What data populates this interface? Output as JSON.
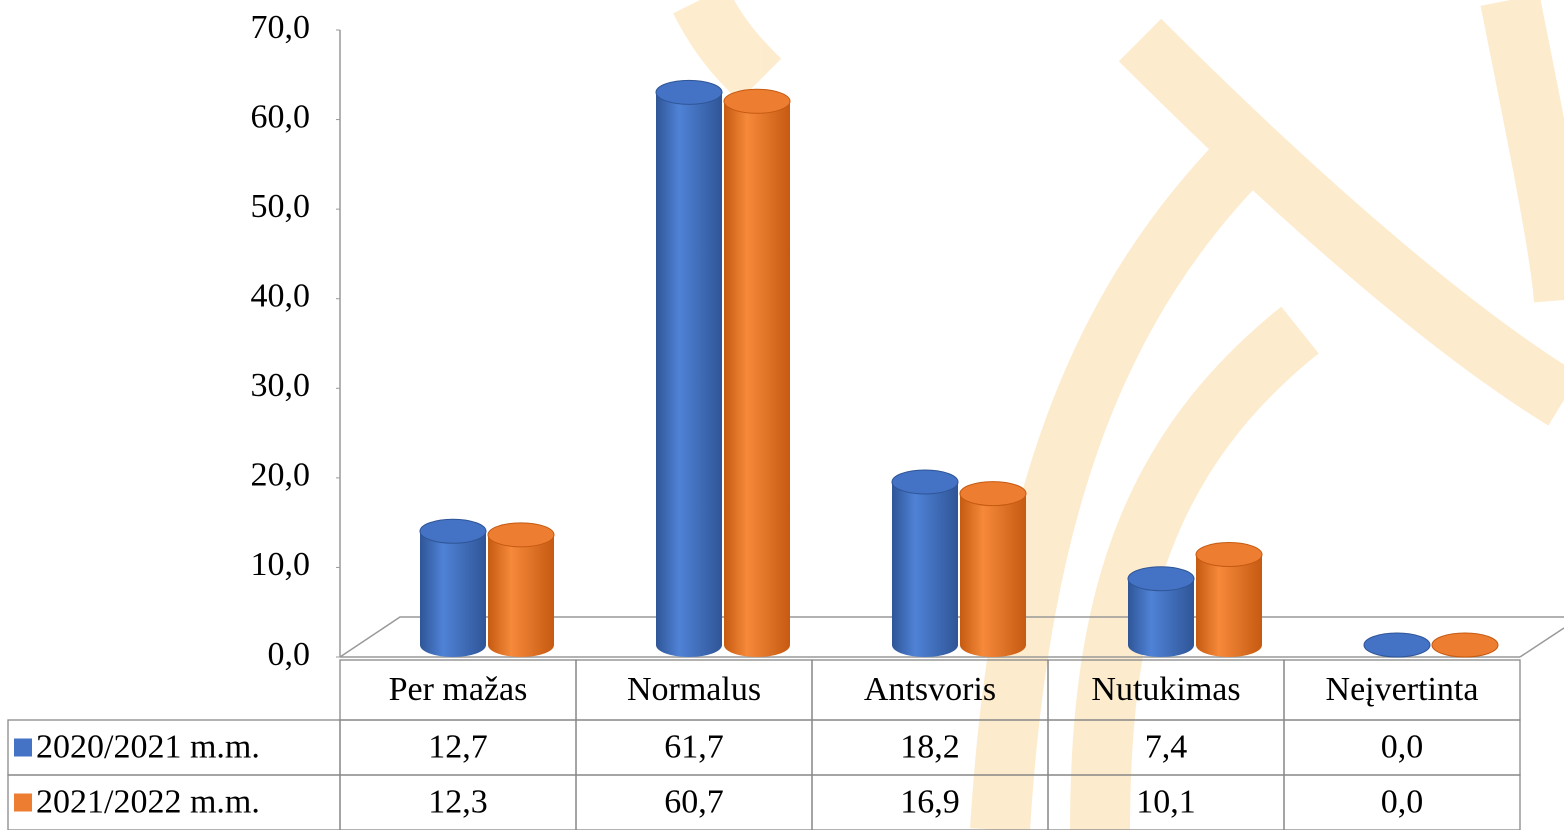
{
  "chart_data": {
    "type": "bar3d",
    "categories": [
      "Per mažas",
      "Normalus",
      "Antsvoris",
      "Nutukimas",
      "Neįvertinta"
    ],
    "series": [
      {
        "name": "2020/2021 m.m.",
        "color": "#4472c4",
        "values": [
          12.7,
          61.7,
          18.2,
          7.4,
          0.0
        ],
        "value_labels": [
          "12,7",
          "61,7",
          "18,2",
          "7,4",
          "0,0"
        ]
      },
      {
        "name": "2021/2022 m.m.",
        "color": "#ed7d31",
        "values": [
          12.3,
          60.7,
          16.9,
          10.1,
          0.0
        ],
        "value_labels": [
          "12,3",
          "60,7",
          "16,9",
          "10,1",
          "0,0"
        ]
      }
    ],
    "ylim": [
      0,
      70
    ],
    "yticks": [
      {
        "value": 0,
        "label": "0,0"
      },
      {
        "value": 10,
        "label": "10,0"
      },
      {
        "value": 20,
        "label": "20,0"
      },
      {
        "value": 30,
        "label": "30,0"
      },
      {
        "value": 40,
        "label": "40,0"
      },
      {
        "value": 50,
        "label": "50,0"
      },
      {
        "value": 60,
        "label": "60,0"
      },
      {
        "value": 70,
        "label": "70,0"
      }
    ],
    "grid": false
  }
}
